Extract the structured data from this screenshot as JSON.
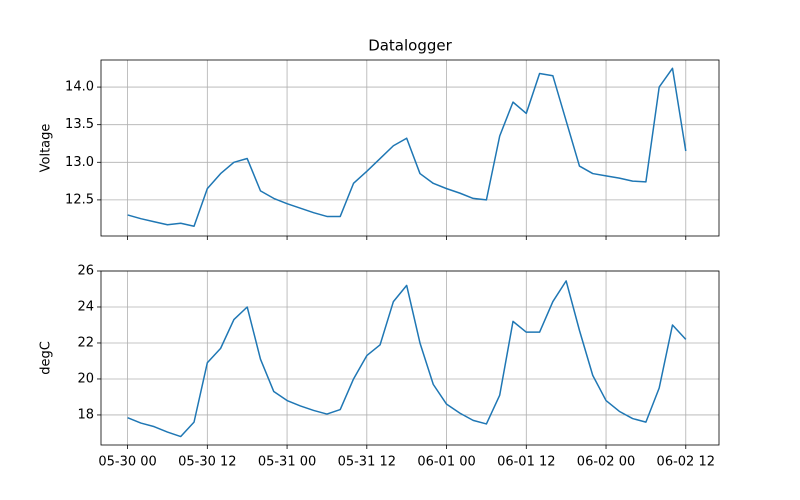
{
  "chart_data": [
    {
      "type": "line",
      "title": "Datalogger",
      "ylabel": "Voltage",
      "grid": true,
      "x": [
        "05-30 00",
        "05-30 02",
        "05-30 04",
        "05-30 06",
        "05-30 08",
        "05-30 10",
        "05-30 12",
        "05-30 14",
        "05-30 16",
        "05-30 18",
        "05-30 20",
        "05-30 22",
        "05-31 00",
        "05-31 02",
        "05-31 04",
        "05-31 06",
        "05-31 08",
        "05-31 10",
        "05-31 12",
        "05-31 14",
        "05-31 16",
        "05-31 18",
        "05-31 20",
        "05-31 22",
        "06-01 00",
        "06-01 02",
        "06-01 04",
        "06-01 06",
        "06-01 08",
        "06-01 10",
        "06-01 12",
        "06-01 14",
        "06-01 16",
        "06-01 18",
        "06-01 20",
        "06-01 22",
        "06-02 00",
        "06-02 02",
        "06-02 04",
        "06-02 06",
        "06-02 08",
        "06-02 10",
        "06-02 12"
      ],
      "series": [
        {
          "name": "Voltage",
          "color": "#1f77b4",
          "values": [
            12.3,
            12.25,
            12.21,
            12.17,
            12.19,
            12.15,
            12.65,
            12.85,
            13.0,
            13.05,
            12.62,
            12.52,
            12.45,
            12.39,
            12.33,
            12.28,
            12.28,
            12.72,
            12.88,
            13.05,
            13.22,
            13.32,
            12.85,
            12.72,
            12.65,
            12.59,
            12.52,
            12.5,
            13.35,
            13.8,
            13.65,
            14.18,
            14.15,
            13.55,
            12.95,
            12.85,
            12.82,
            12.79,
            12.75,
            12.74,
            14.0,
            14.25,
            13.15
          ]
        }
      ],
      "xlim": [
        "05-29 20",
        "06-02 17"
      ],
      "xticks": [
        "05-30 00",
        "05-30 12",
        "05-31 00",
        "05-31 12",
        "06-01 00",
        "06-01 12",
        "06-02 00",
        "06-02 12"
      ],
      "ylim": [
        12.02,
        14.36
      ],
      "yticks": [
        12.5,
        {
          "value": 13,
          "label": "13.0"
        },
        13.5,
        {
          "value": 14,
          "label": "14.0"
        }
      ]
    },
    {
      "type": "line",
      "ylabel": "degC",
      "grid": true,
      "x": [
        "05-30 00",
        "05-30 02",
        "05-30 04",
        "05-30 06",
        "05-30 08",
        "05-30 10",
        "05-30 12",
        "05-30 14",
        "05-30 16",
        "05-30 18",
        "05-30 20",
        "05-30 22",
        "05-31 00",
        "05-31 02",
        "05-31 04",
        "05-31 06",
        "05-31 08",
        "05-31 10",
        "05-31 12",
        "05-31 14",
        "05-31 16",
        "05-31 18",
        "05-31 20",
        "05-31 22",
        "06-01 00",
        "06-01 02",
        "06-01 04",
        "06-01 06",
        "06-01 08",
        "06-01 10",
        "06-01 12",
        "06-01 14",
        "06-01 16",
        "06-01 18",
        "06-01 20",
        "06-01 22",
        "06-02 00",
        "06-02 02",
        "06-02 04",
        "06-02 06",
        "06-02 08",
        "06-02 10",
        "06-02 12"
      ],
      "series": [
        {
          "name": "degC",
          "color": "#1f77b4",
          "values": [
            17.85,
            17.55,
            17.35,
            17.05,
            16.8,
            17.6,
            20.9,
            21.7,
            23.3,
            24.0,
            21.1,
            19.3,
            18.8,
            18.5,
            18.25,
            18.05,
            18.3,
            20.0,
            21.3,
            21.9,
            24.3,
            25.2,
            22.0,
            19.7,
            18.6,
            18.1,
            17.7,
            17.5,
            19.1,
            23.2,
            22.6,
            22.6,
            24.3,
            25.45,
            22.7,
            20.2,
            18.8,
            18.2,
            17.8,
            17.6,
            19.5,
            23.0,
            22.2
          ]
        }
      ],
      "xlim": [
        "05-29 20",
        "06-02 17"
      ],
      "xticks": [
        "05-30 00",
        "05-30 12",
        "05-31 00",
        "05-31 12",
        "06-01 00",
        "06-01 12",
        "06-02 00",
        "06-02 12"
      ],
      "ylim": [
        16.33,
        26
      ],
      "yticks": [
        18,
        20,
        22,
        24,
        26
      ]
    }
  ]
}
